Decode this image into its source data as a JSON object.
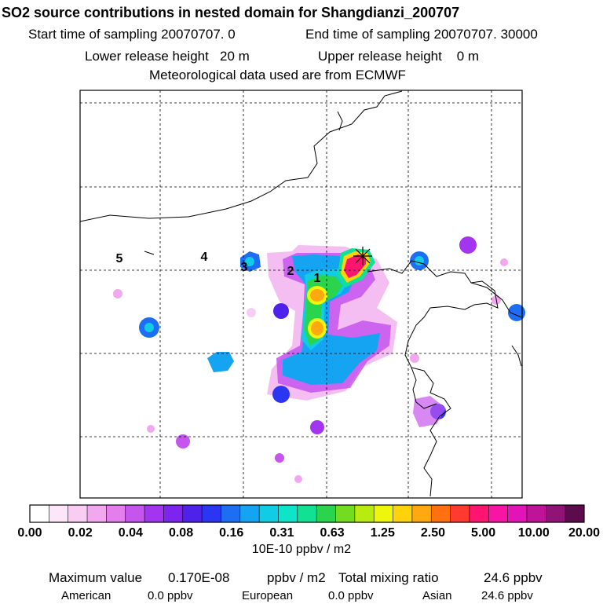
{
  "header": {
    "title": "SO2 source contributions in nested domain for Shangdianzi_200707",
    "start_label": "Start time of sampling",
    "start_value": "20070707.     0",
    "end_label": "End time of sampling",
    "end_value": "20070707. 30000",
    "lower_label": "Lower release height",
    "lower_value": "20 m",
    "upper_label": "Upper release height",
    "upper_value": "0 m",
    "met_text": "Meteorological data used are from ECMWF"
  },
  "map": {
    "region_labels": [
      "1",
      "2",
      "3",
      "4",
      "5"
    ],
    "receptor_symbol": "cross-star-marker"
  },
  "colorbar": {
    "colors": [
      "#ffffff",
      "#fde6fa",
      "#f9ccf4",
      "#f2a8ee",
      "#e47eec",
      "#c655ee",
      "#a335f0",
      "#7d24ee",
      "#4f22ec",
      "#2a36f2",
      "#1e6ef4",
      "#14a4f2",
      "#10cce4",
      "#0ee4c8",
      "#12e092",
      "#2ad44c",
      "#74dc20",
      "#b8ec10",
      "#eef60c",
      "#ffd20a",
      "#ffa810",
      "#ff7010",
      "#ff3a30",
      "#ff1470",
      "#f814a4",
      "#e214b8",
      "#c01498",
      "#901476",
      "#5c0c4c"
    ],
    "tick_labels": [
      "0.00",
      "0.02",
      "0.04",
      "0.08",
      "0.16",
      "0.31",
      "0.63",
      "1.25",
      "2.50",
      "5.00",
      "10.00",
      "20.00"
    ],
    "units": "10E-10 ppbv / m2"
  },
  "footer": {
    "max_label": "Maximum value",
    "max_value": "0.170E-08",
    "max_unit": "ppbv / m2",
    "total_label": "Total mixing ratio",
    "total_value": "24.6 ppbv",
    "american_label": "American",
    "american_value": "0.0 ppbv",
    "european_label": "European",
    "european_value": "0.0 ppbv",
    "asian_label": "Asian",
    "asian_value": "24.6 ppbv"
  }
}
